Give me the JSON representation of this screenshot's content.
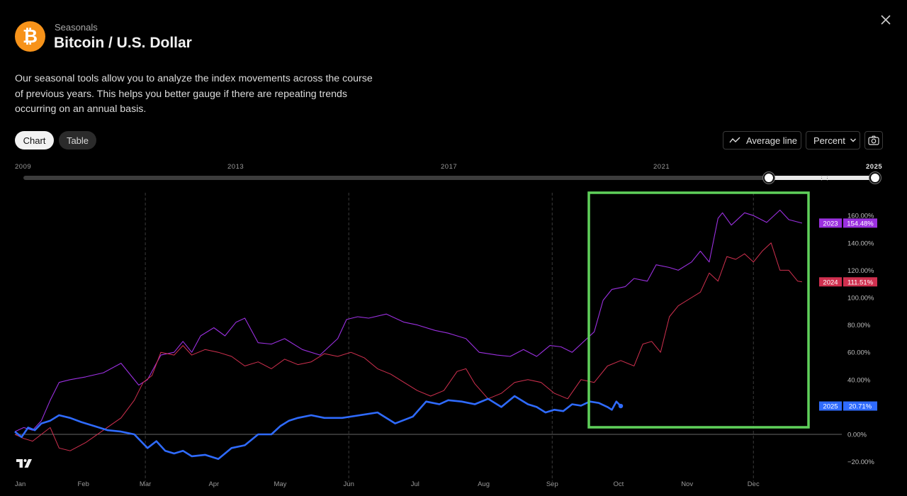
{
  "header": {
    "kicker": "Seasonals",
    "title": "Bitcoin / U.S. Dollar",
    "description": "Our seasonal tools allow you to analyze the index movements across the course of previous years. This helps you better gauge if there are repeating trends occurring on an annual basis."
  },
  "view_toggle": {
    "chart_label": "Chart",
    "table_label": "Table",
    "selected": "Chart"
  },
  "toolbar": {
    "average_line_label": "Average line",
    "scale_label": "Percent"
  },
  "year_range": {
    "ticks": [
      "2009",
      "2013",
      "2017",
      "2021",
      "2025"
    ],
    "selected_start": "2023",
    "selected_end": "2025"
  },
  "colors": {
    "background": "#000000",
    "series_2023": "#9b30e0",
    "series_2024": "#d0304f",
    "series_2025": "#2f6bff",
    "highlight_box": "#5fd05a",
    "logo": "#f7931a"
  },
  "chart_data": {
    "type": "line",
    "title": "Seasonals",
    "x_categories": [
      "Jan",
      "Feb",
      "Mar",
      "Apr",
      "May",
      "Jun",
      "Jul",
      "Aug",
      "Sep",
      "Oct",
      "Nov",
      "Dec"
    ],
    "x_range_days": [
      0,
      365
    ],
    "ylim": [
      -25,
      170
    ],
    "y_ticks": [
      -20,
      0,
      20,
      40,
      60,
      80,
      100,
      120,
      140,
      160
    ],
    "y_tick_labels": [
      "−20.00%",
      "0.00%",
      "20.00%",
      "40.00%",
      "60.00%",
      "80.00%",
      "100.00%",
      "120.00%",
      "140.00%",
      "160.00%"
    ],
    "y_unit": "%",
    "series": [
      {
        "name": "2023",
        "last_label": "154.48%",
        "x": [
          0,
          4,
          8,
          12,
          16,
          20,
          25,
          32,
          40,
          48,
          56,
          60,
          66,
          72,
          76,
          80,
          84,
          90,
          95,
          100,
          104,
          110,
          116,
          122,
          130,
          138,
          146,
          150,
          155,
          160,
          168,
          176,
          182,
          190,
          196,
          204,
          210,
          218,
          224,
          230,
          236,
          242,
          247,
          252,
          256,
          262,
          266,
          270,
          276,
          280,
          286,
          290,
          296,
          300,
          306,
          310,
          314,
          318,
          320,
          324,
          330,
          334,
          340,
          346,
          350,
          356
        ],
        "y": [
          2,
          5,
          3,
          10,
          25,
          38,
          40,
          42,
          45,
          52,
          36,
          40,
          58,
          60,
          68,
          60,
          72,
          78,
          72,
          82,
          85,
          67,
          66,
          70,
          62,
          58,
          70,
          84,
          86,
          85,
          88,
          82,
          80,
          76,
          74,
          70,
          60,
          58,
          57,
          62,
          57,
          65,
          64,
          60,
          66,
          75,
          98,
          106,
          108,
          114,
          112,
          124,
          122,
          120,
          126,
          134,
          126,
          158,
          162,
          153,
          162,
          160,
          155,
          164,
          157,
          154.48
        ]
      },
      {
        "name": "2024",
        "last_label": "111.51%",
        "x": [
          0,
          4,
          8,
          12,
          16,
          20,
          25,
          32,
          40,
          48,
          54,
          58,
          62,
          66,
          72,
          76,
          80,
          86,
          92,
          98,
          104,
          110,
          116,
          122,
          128,
          134,
          140,
          146,
          152,
          158,
          164,
          170,
          176,
          182,
          188,
          194,
          200,
          204,
          208,
          214,
          220,
          226,
          232,
          238,
          244,
          250,
          256,
          262,
          268,
          274,
          280,
          284,
          288,
          292,
          296,
          300,
          306,
          310,
          314,
          318,
          322,
          326,
          330,
          334,
          338,
          342,
          346,
          350,
          354,
          356
        ],
        "y": [
          0,
          -3,
          -5,
          0,
          5,
          -10,
          -12,
          -6,
          3,
          12,
          25,
          38,
          43,
          60,
          58,
          65,
          58,
          62,
          60,
          57,
          50,
          53,
          48,
          55,
          51,
          53,
          59,
          57,
          60,
          56,
          48,
          44,
          38,
          32,
          28,
          32,
          46,
          48,
          37,
          26,
          30,
          38,
          40,
          38,
          30,
          26,
          40,
          38,
          50,
          54,
          50,
          66,
          68,
          60,
          86,
          94,
          100,
          104,
          118,
          112,
          130,
          128,
          132,
          126,
          134,
          140,
          120,
          120,
          112,
          111.51
        ]
      },
      {
        "name": "2025",
        "last_label": "20.71%",
        "x": [
          0,
          3,
          6,
          9,
          12,
          16,
          20,
          25,
          30,
          36,
          42,
          48,
          54,
          60,
          64,
          68,
          72,
          76,
          80,
          86,
          92,
          98,
          104,
          110,
          116,
          120,
          124,
          128,
          134,
          140,
          148,
          156,
          164,
          172,
          180,
          186,
          192,
          196,
          202,
          208,
          214,
          220,
          226,
          232,
          236,
          240,
          244,
          248,
          252,
          256,
          260,
          264,
          268,
          270,
          272,
          274
        ],
        "y": [
          2,
          -2,
          5,
          3,
          8,
          10,
          14,
          12,
          9,
          6,
          3,
          2,
          0,
          -10,
          -5,
          -12,
          -14,
          -12,
          -16,
          -15,
          -18,
          -10,
          -8,
          0,
          0,
          6,
          10,
          12,
          14,
          12,
          12,
          14,
          16,
          8,
          13,
          24,
          22,
          25,
          24,
          22,
          26,
          20,
          28,
          22,
          20,
          16,
          18,
          17,
          22,
          21,
          24,
          23,
          20,
          18,
          24,
          20.71
        ]
      }
    ]
  }
}
